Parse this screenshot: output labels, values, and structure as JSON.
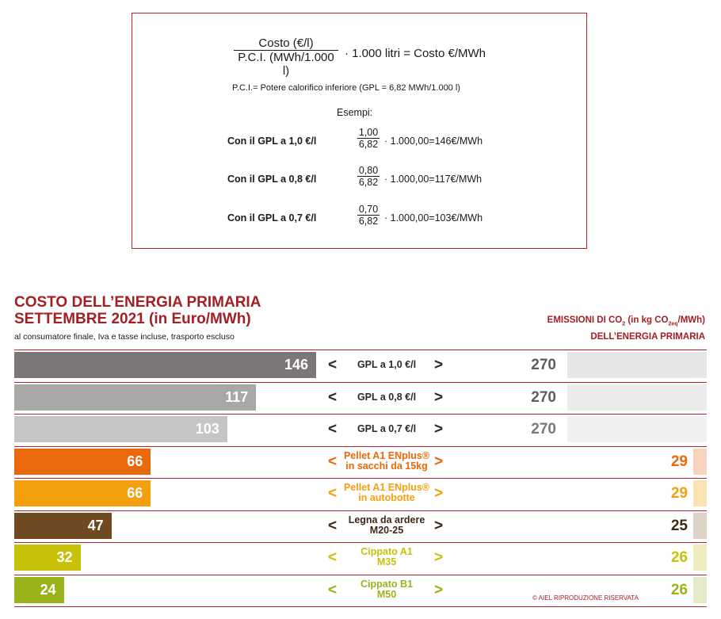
{
  "formula": {
    "numerator": "Costo (€/l)",
    "denominator": "P.C.I. (MWh/1.000 l)",
    "result": "· 1.000 litri = Costo €/MWh",
    "note": "P.C.I.= Potere calorifico inferiore (GPL = 6,82 MWh/1.000 l)",
    "examples_title": "Esempi:",
    "examples": [
      {
        "label": "Con il GPL a 1,0 €/l",
        "num": "1,00",
        "den": "6,82",
        "result": "· 1.000,00=146€/MWh"
      },
      {
        "label": "Con il GPL a 0,8 €/l",
        "num": "0,80",
        "den": "6,82",
        "result": "· 1.000,00=117€/MWh"
      },
      {
        "label": "Con il GPL a 0,7 €/l",
        "num": "0,70",
        "den": "6,82",
        "result": "· 1.000,00=103€/MWh"
      }
    ]
  },
  "chart_data": {
    "type": "bar",
    "title_line1": "COSTO DELL’ENERGIA PRIMARIA",
    "title_line2": "SETTEMBRE 2021 (in Euro/MWh)",
    "subtitle": "al consumatore finale, Iva e tasse incluse, trasporto escluso",
    "emissions_title_a": "EMISSIONI DI CO",
    "emissions_title_sub1": "2",
    "emissions_title_b": " (in kg CO",
    "emissions_title_sub2": "2eq",
    "emissions_title_c": "/MWh)",
    "emissions_title_line2": "DELL’ENERGIA PRIMARIA",
    "xlim": [
      0,
      146
    ],
    "arrow_left": "<",
    "arrow_right": ">",
    "rows": [
      {
        "line1": "GPL a 1,0 €/l",
        "line2": "",
        "cost": 146,
        "emission": 270,
        "color": "#7a7776",
        "labelColor": "#2a2a2a",
        "emisColor": "#e6e6e6"
      },
      {
        "line1": "GPL a 0,8 €/l",
        "line2": "",
        "cost": 117,
        "emission": 270,
        "color": "#a9a8a7",
        "labelColor": "#2a2a2a",
        "emisColor": "#ececec"
      },
      {
        "line1": "GPL a 0,7 €/l",
        "line2": "",
        "cost": 103,
        "emission": 270,
        "color": "#c6c5c4",
        "labelColor": "#2a2a2a",
        "emisColor": "#f0f0f0"
      },
      {
        "line1": "Pellet A1 ENplus®",
        "line2": "in sacchi da 15kg",
        "cost": 66,
        "emission": 29,
        "color": "#e9690c",
        "labelColor": "#e9690c",
        "emisColor": "#f8d3bb"
      },
      {
        "line1": "Pellet A1 ENplus®",
        "line2": "in autobotte",
        "cost": 66,
        "emission": 29,
        "color": "#f3a00c",
        "labelColor": "#f3a00c",
        "emisColor": "#fbe3b6"
      },
      {
        "line1": "Legna da ardere",
        "line2": "M20-25",
        "cost": 47,
        "emission": 25,
        "color": "#6f4a23",
        "labelColor": "#3d2a14",
        "emisColor": "#dcd2c6"
      },
      {
        "line1": "Cippato A1",
        "line2": "M35",
        "cost": 32,
        "emission": 26,
        "color": "#c7c10a",
        "labelColor": "#c7c10a",
        "emisColor": "#efedbd"
      },
      {
        "line1": "Cippato B1",
        "line2": "M50",
        "cost": 24,
        "emission": 26,
        "color": "#9bb21a",
        "labelColor": "#9bb21a",
        "emisColor": "#e4ebc6"
      }
    ]
  },
  "copyright": "© AIEL   RIPRODUZIONE RISERVATA"
}
